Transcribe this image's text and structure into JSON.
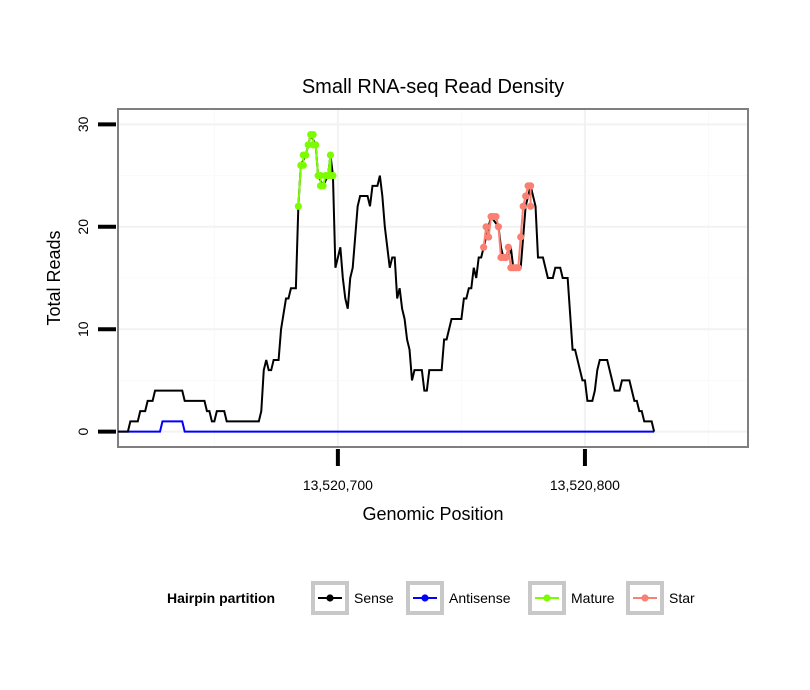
{
  "chart_data": {
    "type": "line",
    "title": "Small RNA-seq Read Density",
    "xlabel": "Genomic Position",
    "ylabel": "Total Reads",
    "xlim": [
      13520611,
      13520866
    ],
    "ylim": [
      -1.5,
      31.5
    ],
    "x_ticks": [
      {
        "value": 13520700,
        "label": "13,520,700"
      },
      {
        "value": 13520800,
        "label": "13,520,800"
      }
    ],
    "y_ticks": [
      {
        "value": 0,
        "label": "0"
      },
      {
        "value": 10,
        "label": "10"
      },
      {
        "value": 20,
        "label": "20"
      },
      {
        "value": 30,
        "label": "30"
      }
    ],
    "grid": true,
    "legend": {
      "title": "Hairpin partition",
      "position": "bottom",
      "items": [
        {
          "name": "Sense",
          "color": "#000000"
        },
        {
          "name": "Antisense",
          "color": "#0000ff"
        },
        {
          "name": "Mature",
          "color": "#7cfc00"
        },
        {
          "name": "Star",
          "color": "#fa8072"
        }
      ]
    },
    "series": [
      {
        "name": "Sense",
        "color": "#000000",
        "points": [
          [
            13520611,
            0
          ],
          [
            13520615,
            0
          ],
          [
            13520616,
            1
          ],
          [
            13520619,
            1
          ],
          [
            13520620,
            2
          ],
          [
            13520622,
            2
          ],
          [
            13520623,
            3
          ],
          [
            13520625,
            3
          ],
          [
            13520626,
            4
          ],
          [
            13520637,
            4
          ],
          [
            13520638,
            3
          ],
          [
            13520646,
            3
          ],
          [
            13520647,
            2
          ],
          [
            13520648,
            2
          ],
          [
            13520649,
            1
          ],
          [
            13520650,
            1
          ],
          [
            13520651,
            2
          ],
          [
            13520654,
            2
          ],
          [
            13520655,
            1
          ],
          [
            13520668,
            1
          ],
          [
            13520669,
            2
          ],
          [
            13520670,
            6
          ],
          [
            13520671,
            7
          ],
          [
            13520672,
            6
          ],
          [
            13520673,
            6
          ],
          [
            13520674,
            7
          ],
          [
            13520676,
            7
          ],
          [
            13520677,
            10
          ],
          [
            13520679,
            13
          ],
          [
            13520680,
            13
          ],
          [
            13520681,
            14
          ],
          [
            13520683,
            14
          ],
          [
            13520684,
            22
          ],
          [
            13520685,
            26
          ],
          [
            13520687,
            27
          ],
          [
            13520688,
            28
          ],
          [
            13520689,
            29
          ],
          [
            13520691,
            28
          ],
          [
            13520692,
            25
          ],
          [
            13520694,
            24
          ],
          [
            13520696,
            25
          ],
          [
            13520697,
            27
          ],
          [
            13520698,
            25
          ],
          [
            13520699,
            16
          ],
          [
            13520700,
            17
          ],
          [
            13520701,
            18
          ],
          [
            13520702,
            15
          ],
          [
            13520703,
            13
          ],
          [
            13520704,
            12
          ],
          [
            13520705,
            15
          ],
          [
            13520706,
            16
          ],
          [
            13520707,
            19
          ],
          [
            13520708,
            22
          ],
          [
            13520709,
            23
          ],
          [
            13520712,
            23
          ],
          [
            13520713,
            22
          ],
          [
            13520714,
            24
          ],
          [
            13520716,
            24
          ],
          [
            13520717,
            25
          ],
          [
            13520718,
            23
          ],
          [
            13520719,
            20
          ],
          [
            13520720,
            18
          ],
          [
            13520721,
            16
          ],
          [
            13520722,
            17
          ],
          [
            13520723,
            17
          ],
          [
            13520724,
            13
          ],
          [
            13520725,
            14
          ],
          [
            13520726,
            12
          ],
          [
            13520727,
            11
          ],
          [
            13520728,
            9
          ],
          [
            13520729,
            8
          ],
          [
            13520730,
            5
          ],
          [
            13520731,
            6
          ],
          [
            13520734,
            6
          ],
          [
            13520735,
            4
          ],
          [
            13520736,
            4
          ],
          [
            13520737,
            6
          ],
          [
            13520742,
            6
          ],
          [
            13520743,
            9
          ],
          [
            13520744,
            9
          ],
          [
            13520745,
            10
          ],
          [
            13520746,
            11
          ],
          [
            13520750,
            11
          ],
          [
            13520751,
            13
          ],
          [
            13520752,
            13
          ],
          [
            13520753,
            14
          ],
          [
            13520754,
            14
          ],
          [
            13520755,
            16
          ],
          [
            13520756,
            15
          ],
          [
            13520757,
            17
          ],
          [
            13520758,
            17
          ],
          [
            13520759,
            18
          ],
          [
            13520760,
            19
          ],
          [
            13520761,
            20
          ],
          [
            13520762,
            21
          ],
          [
            13520765,
            20
          ],
          [
            13520766,
            18
          ],
          [
            13520767,
            17
          ],
          [
            13520769,
            17
          ],
          [
            13520770,
            18
          ],
          [
            13520771,
            16
          ],
          [
            13520774,
            16
          ],
          [
            13520775,
            19
          ],
          [
            13520776,
            22
          ],
          [
            13520777,
            23
          ],
          [
            13520778,
            24
          ],
          [
            13520780,
            22
          ],
          [
            13520781,
            17
          ],
          [
            13520783,
            17
          ],
          [
            13520784,
            16
          ],
          [
            13520785,
            15
          ],
          [
            13520787,
            15
          ],
          [
            13520788,
            16
          ],
          [
            13520790,
            16
          ],
          [
            13520791,
            15
          ],
          [
            13520793,
            15
          ],
          [
            13520795,
            8
          ],
          [
            13520796,
            8
          ],
          [
            13520797,
            7
          ],
          [
            13520798,
            6
          ],
          [
            13520799,
            5
          ],
          [
            13520800,
            5
          ],
          [
            13520801,
            3
          ],
          [
            13520803,
            3
          ],
          [
            13520804,
            4
          ],
          [
            13520805,
            6
          ],
          [
            13520806,
            7
          ],
          [
            13520809,
            7
          ],
          [
            13520811,
            5
          ],
          [
            13520812,
            4
          ],
          [
            13520814,
            4
          ],
          [
            13520815,
            5
          ],
          [
            13520818,
            5
          ],
          [
            13520819,
            4
          ],
          [
            13520820,
            3
          ],
          [
            13520821,
            3
          ],
          [
            13520822,
            2
          ],
          [
            13520823,
            2
          ],
          [
            13520824,
            1
          ],
          [
            13520827,
            1
          ],
          [
            13520828,
            0
          ]
        ]
      },
      {
        "name": "Antisense",
        "color": "#0000ff",
        "points": [
          [
            13520611,
            0
          ],
          [
            13520628,
            0
          ],
          [
            13520629,
            1
          ],
          [
            13520637,
            1
          ],
          [
            13520638,
            0
          ],
          [
            13520828,
            0
          ]
        ]
      },
      {
        "name": "Mature",
        "color": "#7cfc00",
        "points": [
          [
            13520684,
            22
          ],
          [
            13520685,
            26
          ],
          [
            13520686,
            26
          ],
          [
            13520686,
            27
          ],
          [
            13520687,
            27
          ],
          [
            13520688,
            28
          ],
          [
            13520689,
            29
          ],
          [
            13520690,
            29
          ],
          [
            13520690,
            28
          ],
          [
            13520691,
            28
          ],
          [
            13520692,
            25
          ],
          [
            13520693,
            25
          ],
          [
            13520693,
            24
          ],
          [
            13520694,
            24
          ],
          [
            13520695,
            25
          ],
          [
            13520696,
            25
          ],
          [
            13520697,
            27
          ],
          [
            13520697,
            25
          ],
          [
            13520698,
            25
          ]
        ]
      },
      {
        "name": "Star",
        "color": "#fa8072",
        "points": [
          [
            13520759,
            18
          ],
          [
            13520760,
            20
          ],
          [
            13520761,
            19
          ],
          [
            13520762,
            21
          ],
          [
            13520763,
            21
          ],
          [
            13520764,
            21
          ],
          [
            13520765,
            20
          ],
          [
            13520766,
            17
          ],
          [
            13520767,
            17
          ],
          [
            13520768,
            17
          ],
          [
            13520769,
            18
          ],
          [
            13520770,
            16
          ],
          [
            13520771,
            16
          ],
          [
            13520772,
            16
          ],
          [
            13520773,
            16
          ],
          [
            13520774,
            19
          ],
          [
            13520775,
            22
          ],
          [
            13520776,
            23
          ],
          [
            13520777,
            24
          ],
          [
            13520778,
            24
          ],
          [
            13520778,
            22
          ]
        ]
      }
    ]
  }
}
